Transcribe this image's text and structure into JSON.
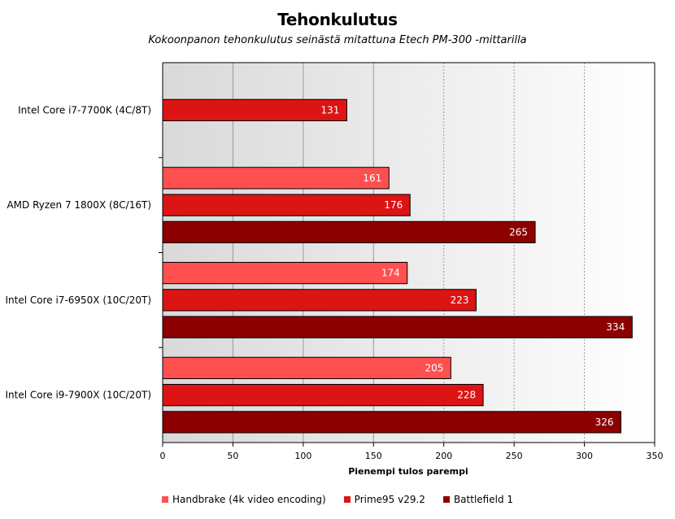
{
  "chart_data": {
    "type": "bar",
    "orientation": "horizontal",
    "title": "Tehonkulutus",
    "subtitle": "Kokoonpanon tehonkulutus seinästä mitattuna Etech PM-300 -mittarilla",
    "xlabel": "Pienempi tulos parempi",
    "ylabel": "",
    "xlim": [
      0,
      350
    ],
    "x_ticks": [
      0,
      50,
      100,
      150,
      200,
      250,
      300,
      350
    ],
    "grid": true,
    "legend_position": "bottom",
    "categories": [
      "Intel Core i7-7700K (4C/8T)",
      "AMD Ryzen 7 1800X (8C/16T)",
      "Intel Core i7-6950X (10C/20T)",
      "Intel Core i9-7900X (10C/20T)"
    ],
    "series": [
      {
        "name": "Handbrake (4k video encoding)",
        "color": "#ff5050",
        "values": [
          null,
          161,
          174,
          205
        ]
      },
      {
        "name": "Prime95 v29.2",
        "color": "#dc1414",
        "values": [
          131,
          176,
          223,
          228
        ]
      },
      {
        "name": "Battlefield 1",
        "color": "#8c0000",
        "values": [
          null,
          265,
          334,
          326
        ]
      }
    ]
  }
}
